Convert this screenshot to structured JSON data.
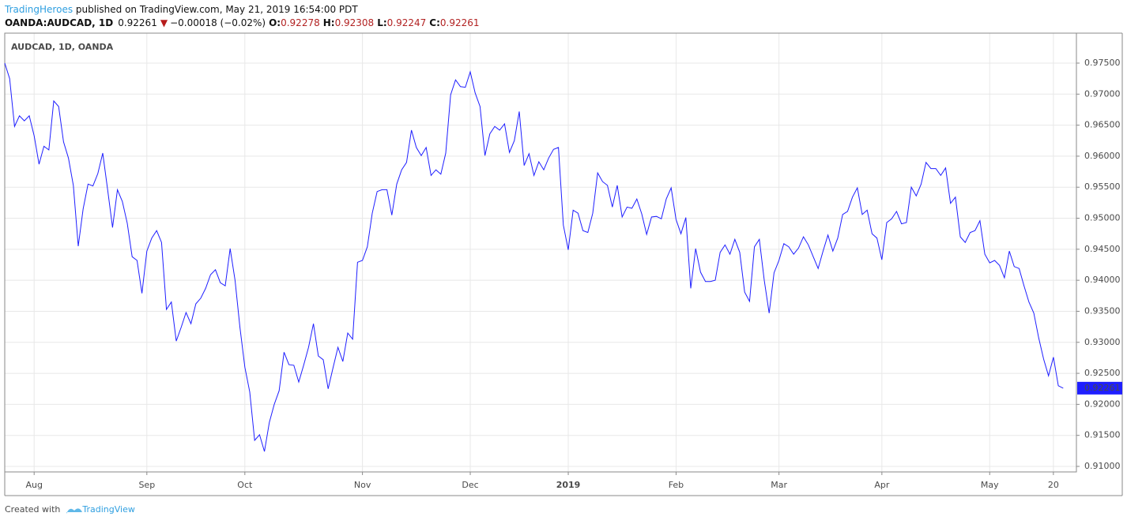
{
  "header": {
    "brand": "TradingHeroes",
    "published": " published on TradingView.com, May 21, 2019 16:54:00 PDT",
    "symbol": "OANDA:AUDCAD, 1D",
    "last": "0.92261",
    "arrow": "▼",
    "change": "−0.00018 (−0.02%)",
    "o_label": "O:",
    "o": "0.92278",
    "h_label": "H:",
    "h": "0.92308",
    "l_label": "L:",
    "l": "0.92247",
    "c_label": "C:",
    "c": "0.92261"
  },
  "footer": {
    "created": "Created with",
    "brand": "TradingView"
  },
  "chart_data": {
    "type": "line",
    "title": "AUDCAD, 1D, OANDA",
    "color": "#1f1fff",
    "grid": true,
    "last_price_label": "0.92261",
    "values": [
      0.975,
      0.9725,
      0.9648,
      0.9665,
      0.9657,
      0.9665,
      0.9633,
      0.9587,
      0.9616,
      0.961,
      0.9689,
      0.968,
      0.9623,
      0.9597,
      0.9553,
      0.9455,
      0.9515,
      0.9555,
      0.9552,
      0.9572,
      0.9605,
      0.9546,
      0.9485,
      0.9546,
      0.9527,
      0.9492,
      0.9438,
      0.9432,
      0.9379,
      0.9447,
      0.9468,
      0.948,
      0.9461,
      0.9353,
      0.9365,
      0.9302,
      0.9324,
      0.9348,
      0.933,
      0.9362,
      0.9371,
      0.9387,
      0.9409,
      0.9417,
      0.9396,
      0.9391,
      0.9451,
      0.94,
      0.9324,
      0.926,
      0.922,
      0.9142,
      0.9151,
      0.9124,
      0.9171,
      0.92,
      0.9222,
      0.9284,
      0.9264,
      0.9263,
      0.9236,
      0.9263,
      0.9292,
      0.933,
      0.9278,
      0.9272,
      0.9225,
      0.9259,
      0.9292,
      0.9269,
      0.9315,
      0.9305,
      0.9429,
      0.9432,
      0.9454,
      0.9508,
      0.9543,
      0.9546,
      0.9546,
      0.9505,
      0.9555,
      0.9578,
      0.959,
      0.9642,
      0.9614,
      0.9601,
      0.9614,
      0.9569,
      0.9578,
      0.9571,
      0.9605,
      0.9699,
      0.9723,
      0.9712,
      0.9711,
      0.9736,
      0.9702,
      0.968,
      0.9601,
      0.9636,
      0.9648,
      0.9642,
      0.9652,
      0.9606,
      0.9625,
      0.9672,
      0.9585,
      0.9604,
      0.9569,
      0.9591,
      0.9578,
      0.9597,
      0.9611,
      0.9614,
      0.9489,
      0.9449,
      0.9513,
      0.9508,
      0.948,
      0.9477,
      0.9508,
      0.9573,
      0.9559,
      0.9553,
      0.9518,
      0.9553,
      0.9502,
      0.9518,
      0.9516,
      0.9531,
      0.9507,
      0.9474,
      0.9502,
      0.9503,
      0.9499,
      0.9531,
      0.9549,
      0.9498,
      0.9475,
      0.9501,
      0.9387,
      0.9451,
      0.9413,
      0.9398,
      0.9398,
      0.94,
      0.9445,
      0.9457,
      0.9442,
      0.9466,
      0.9445,
      0.9381,
      0.9366,
      0.9454,
      0.9466,
      0.94,
      0.9347,
      0.9412,
      0.9432,
      0.9459,
      0.9454,
      0.9442,
      0.9452,
      0.947,
      0.9457,
      0.9438,
      0.9419,
      0.9447,
      0.9473,
      0.9447,
      0.9468,
      0.9506,
      0.9511,
      0.9534,
      0.9549,
      0.9506,
      0.9513,
      0.9475,
      0.9468,
      0.9433,
      0.9493,
      0.9499,
      0.9511,
      0.9491,
      0.9493,
      0.955,
      0.9536,
      0.9555,
      0.959,
      0.958,
      0.958,
      0.9569,
      0.9581,
      0.9524,
      0.9534,
      0.947,
      0.9461,
      0.9477,
      0.948,
      0.9496,
      0.9442,
      0.9428,
      0.9432,
      0.9424,
      0.9404,
      0.9447,
      0.9422,
      0.9419,
      0.9391,
      0.9365,
      0.9347,
      0.9307,
      0.9273,
      0.9246,
      0.9276,
      0.923,
      0.92261
    ],
    "xlim": [
      0,
      218.7
    ],
    "xticks": [
      {
        "value": 6,
        "label": "Aug"
      },
      {
        "value": 29,
        "label": "Sep"
      },
      {
        "value": 49,
        "label": "Oct"
      },
      {
        "value": 73,
        "label": "Nov"
      },
      {
        "value": 95,
        "label": "Dec"
      },
      {
        "value": 115,
        "label": "2019"
      },
      {
        "value": 137,
        "label": "Feb"
      },
      {
        "value": 158,
        "label": "Mar"
      },
      {
        "value": 179,
        "label": "Apr"
      },
      {
        "value": 201,
        "label": "May"
      },
      {
        "value": 214,
        "label": "20"
      }
    ],
    "ylim": [
      0.90911,
      0.97983
    ],
    "yticks": [
      {
        "value": 0.91,
        "label": "0.91000"
      },
      {
        "value": 0.915,
        "label": "0.91500"
      },
      {
        "value": 0.92,
        "label": "0.92000"
      },
      {
        "value": 0.925,
        "label": "0.92500"
      },
      {
        "value": 0.93,
        "label": "0.93000"
      },
      {
        "value": 0.935,
        "label": "0.93500"
      },
      {
        "value": 0.94,
        "label": "0.94000"
      },
      {
        "value": 0.945,
        "label": "0.94500"
      },
      {
        "value": 0.95,
        "label": "0.95000"
      },
      {
        "value": 0.955,
        "label": "0.95500"
      },
      {
        "value": 0.96,
        "label": "0.96000"
      },
      {
        "value": 0.965,
        "label": "0.96500"
      },
      {
        "value": 0.97,
        "label": "0.97000"
      },
      {
        "value": 0.975,
        "label": "0.97500"
      }
    ]
  }
}
